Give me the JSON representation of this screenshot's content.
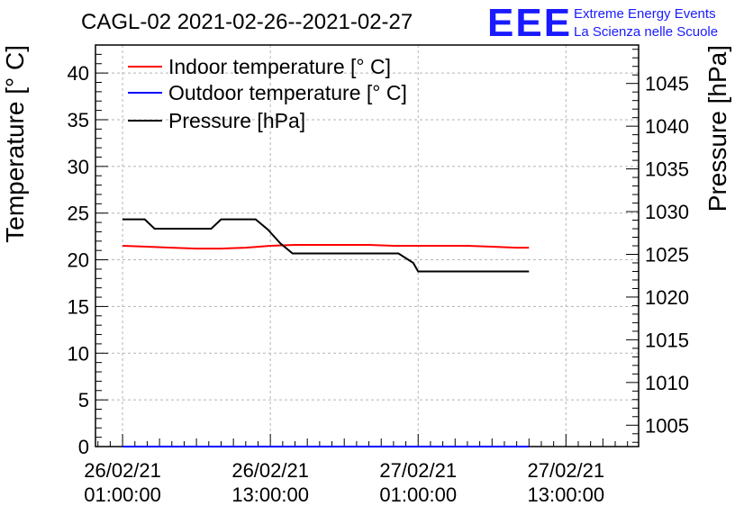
{
  "chart_data": {
    "type": "line",
    "title": "CAGL-02 2021-02-26--2021-02-27",
    "ylabel": "Temperature [° C]",
    "y2label": "Pressure [hPa]",
    "ylim": [
      0,
      43
    ],
    "y2lim": [
      1002.5,
      1049.5
    ],
    "xlim_hours": [
      -2.2,
      41.9
    ],
    "x_ticks": [
      {
        "hour": 0,
        "line1": "26/02/21",
        "line2": "01:00:00"
      },
      {
        "hour": 12,
        "line1": "26/02/21",
        "line2": "13:00:00"
      },
      {
        "hour": 24,
        "line1": "27/02/21",
        "line2": "01:00:00"
      },
      {
        "hour": 36,
        "line1": "27/02/21",
        "line2": "13:00:00"
      }
    ],
    "y_ticks": [
      0,
      5,
      10,
      15,
      20,
      25,
      30,
      35,
      40
    ],
    "y2_ticks": [
      1005,
      1010,
      1015,
      1020,
      1025,
      1030,
      1035,
      1040,
      1045
    ],
    "grid": true,
    "legend_position": "top-left",
    "series": [
      {
        "name": "Indoor temperature [° C]",
        "color": "#ff0000",
        "axis": "left",
        "x": [
          0,
          2,
          4,
          6,
          8,
          10,
          12,
          14,
          16,
          18,
          20,
          22,
          24,
          26,
          28,
          30,
          32,
          33
        ],
        "y": [
          21.5,
          21.4,
          21.3,
          21.2,
          21.2,
          21.3,
          21.5,
          21.6,
          21.6,
          21.6,
          21.6,
          21.5,
          21.5,
          21.5,
          21.5,
          21.4,
          21.3,
          21.3
        ]
      },
      {
        "name": "Outdoor temperature [° C]",
        "color": "#0000ff",
        "axis": "left",
        "x": [
          0,
          33
        ],
        "y": [
          0,
          0
        ]
      },
      {
        "name": "Pressure [hPa]",
        "color": "#000000",
        "axis": "right",
        "x": [
          0,
          1.8,
          2.6,
          7.2,
          8.0,
          10.8,
          11.8,
          12.8,
          13.8,
          22.4,
          23.6,
          24.0,
          33
        ],
        "y": [
          1029.1,
          1029.1,
          1028.0,
          1028.0,
          1029.1,
          1029.1,
          1027.9,
          1026.3,
          1025.1,
          1025.1,
          1024.0,
          1023.0,
          1023.0
        ]
      }
    ]
  },
  "logo": {
    "main": "EEE",
    "line1": "Extreme Energy Events",
    "line2": "La Scienza nelle Scuole"
  }
}
